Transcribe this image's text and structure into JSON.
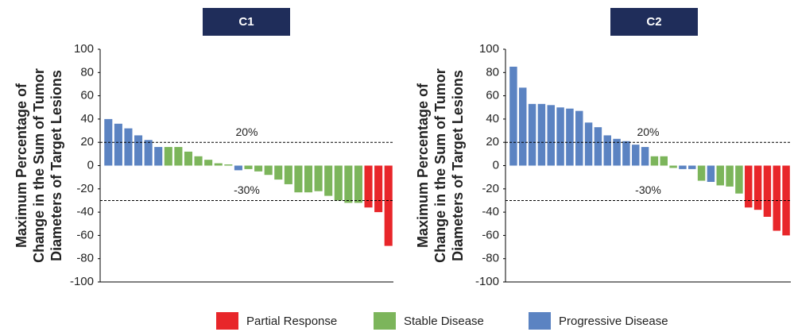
{
  "chart_data": [
    {
      "type": "bar",
      "title": "C1",
      "ylabel": [
        "Maximum Percentage of",
        "Change in the Sum of Tumor",
        "Diameters of Target Lesions"
      ],
      "values": [
        40,
        36,
        32,
        26,
        22,
        16,
        16,
        16,
        12,
        8,
        5,
        2,
        1,
        -4,
        -3,
        -5,
        -8,
        -12,
        -16,
        -23,
        -23,
        -22,
        -26,
        -30,
        -32,
        -32,
        -36,
        -40,
        -69
      ],
      "colors": [
        "#5b83c2",
        "#5b83c2",
        "#5b83c2",
        "#5b83c2",
        "#5b83c2",
        "#5b83c2",
        "#7cb55b",
        "#7cb55b",
        "#7cb55b",
        "#7cb55b",
        "#7cb55b",
        "#7cb55b",
        "#7cb55b",
        "#5b83c2",
        "#7cb55b",
        "#7cb55b",
        "#7cb55b",
        "#7cb55b",
        "#7cb55b",
        "#7cb55b",
        "#7cb55b",
        "#7cb55b",
        "#7cb55b",
        "#7cb55b",
        "#7cb55b",
        "#7cb55b",
        "#e8262a",
        "#e8262a",
        "#e8262a"
      ],
      "ylim": [
        -100,
        100
      ],
      "yticks": [
        100,
        80,
        60,
        40,
        20,
        0,
        -20,
        -40,
        -60,
        -80,
        -100
      ],
      "reference_lines": [
        {
          "value": 20,
          "label": "20%"
        },
        {
          "value": -30,
          "label": "-30%"
        }
      ]
    },
    {
      "type": "bar",
      "title": "C2",
      "ylabel": [
        "Maximum Percentage of",
        "Change in the Sum of Tumor",
        "Diameters of Target Lesions"
      ],
      "values": [
        85,
        67,
        53,
        53,
        52,
        50,
        49,
        47,
        37,
        33,
        26,
        23,
        21,
        18,
        16,
        8,
        8,
        -2,
        -3,
        -3,
        -13,
        -14,
        -17,
        -18,
        -24,
        -36,
        -38,
        -44,
        -56,
        -60
      ],
      "colors": [
        "#5b83c2",
        "#5b83c2",
        "#5b83c2",
        "#5b83c2",
        "#5b83c2",
        "#5b83c2",
        "#5b83c2",
        "#5b83c2",
        "#5b83c2",
        "#5b83c2",
        "#5b83c2",
        "#5b83c2",
        "#5b83c2",
        "#5b83c2",
        "#5b83c2",
        "#7cb55b",
        "#7cb55b",
        "#7cb55b",
        "#5b83c2",
        "#5b83c2",
        "#7cb55b",
        "#5b83c2",
        "#7cb55b",
        "#7cb55b",
        "#7cb55b",
        "#e8262a",
        "#e8262a",
        "#e8262a",
        "#e8262a",
        "#e8262a"
      ],
      "ylim": [
        -100,
        100
      ],
      "yticks": [
        100,
        80,
        60,
        40,
        20,
        0,
        -20,
        -40,
        -60,
        -80,
        -100
      ],
      "reference_lines": [
        {
          "value": 20,
          "label": "20%"
        },
        {
          "value": -30,
          "label": "-30%"
        }
      ]
    }
  ],
  "legend": [
    {
      "label": "Partial Response",
      "color": "#e8262a"
    },
    {
      "label": "Stable Disease",
      "color": "#7cb55b"
    },
    {
      "label": "Progressive Disease",
      "color": "#5b83c2"
    }
  ]
}
